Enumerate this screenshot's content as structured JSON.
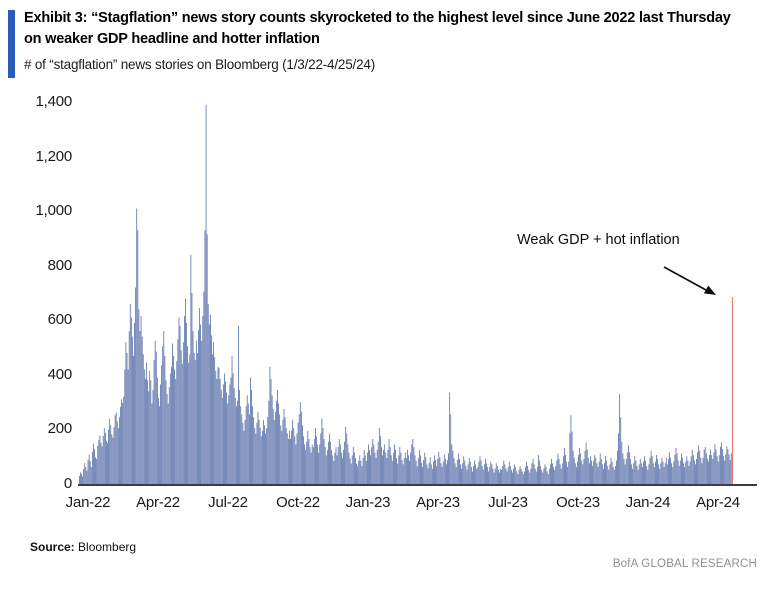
{
  "header": {
    "exhibit_title": "Exhibit 3: “Stagflation” news story counts skyrocketed to the highest level since June 2022 last Thursday on weaker GDP headline and hotter inflation",
    "subtitle": "# of “stagflation” news stories on Bloomberg (1/3/22-4/25/24)",
    "accent_color": "#2b5abd"
  },
  "annotation": {
    "text": "Weak GDP + hot inflation"
  },
  "footer": {
    "source_label": "Source:",
    "source_value": "Bloomberg",
    "brand": "BofA GLOBAL RESEARCH"
  },
  "chart_data": {
    "type": "bar",
    "title": "# of “stagflation” news stories on Bloomberg (1/3/22-4/25/24)",
    "xlabel": "",
    "ylabel": "",
    "ylim": [
      0,
      1400
    ],
    "grid": false,
    "legend": "none",
    "y_ticks": [
      0,
      200,
      400,
      600,
      800,
      1000,
      1200,
      1400
    ],
    "y_tick_labels": [
      "0",
      "200",
      "400",
      "600",
      "800",
      "1,000",
      "1,200",
      "1,400"
    ],
    "x_tick_labels": [
      "Jan-22",
      "Apr-22",
      "Jul-22",
      "Oct-22",
      "Jan-23",
      "Apr-23",
      "Jul-23",
      "Oct-23",
      "Jan-24",
      "Apr-24"
    ],
    "frequency": "daily (weekdays)",
    "date_range": "1/3/22 - 4/25/24",
    "bar_color": "#46609f",
    "highlight_color": "#e07a6d",
    "highlight_index": 603,
    "highlight_value": 685,
    "highlight_label": "Weak GDP + hot inflation",
    "notable_points": {
      "mar_2022_peak": 1010,
      "jun_2022_peak_max": 1390,
      "jul_2022_gdp_spike": 580,
      "apr_2023_gdp_spike": 335,
      "oct_2023_spike": 252,
      "dec_2023_spike": 330,
      "apr_25_2024_red_bar": 685
    },
    "values": [
      30,
      42,
      36,
      28,
      55,
      78,
      62,
      48,
      88,
      108,
      84,
      62,
      118,
      148,
      128,
      98,
      92,
      140,
      162,
      178,
      150,
      138,
      176,
      205,
      188,
      158,
      150,
      198,
      238,
      215,
      182,
      170,
      208,
      252,
      262,
      228,
      205,
      245,
      282,
      310,
      298,
      320,
      420,
      520,
      480,
      420,
      560,
      660,
      610,
      540,
      470,
      590,
      720,
      1010,
      930,
      640,
      560,
      615,
      540,
      475,
      420,
      385,
      445,
      380,
      340,
      415,
      380,
      295,
      345,
      455,
      525,
      485,
      390,
      315,
      285,
      365,
      435,
      505,
      560,
      470,
      380,
      330,
      295,
      355,
      405,
      430,
      515,
      470,
      420,
      385,
      450,
      530,
      610,
      580,
      490,
      440,
      520,
      615,
      680,
      590,
      505,
      445,
      475,
      840,
      700,
      560,
      480,
      455,
      525,
      480,
      565,
      645,
      585,
      525,
      615,
      705,
      930,
      1390,
      915,
      660,
      585,
      620,
      545,
      475,
      520,
      465,
      415,
      385,
      430,
      425,
      385,
      345,
      315,
      365,
      405,
      375,
      335,
      295,
      325,
      365,
      390,
      470,
      405,
      350,
      315,
      285,
      305,
      580,
      345,
      285,
      255,
      225,
      195,
      235,
      285,
      325,
      295,
      255,
      390,
      345,
      285,
      245,
      205,
      185,
      225,
      265,
      235,
      205,
      175,
      195,
      235,
      215,
      185,
      205,
      245,
      305,
      430,
      385,
      325,
      275,
      235,
      265,
      305,
      345,
      295,
      255,
      215,
      195,
      235,
      275,
      245,
      205,
      185,
      165,
      195,
      165,
      195,
      235,
      205,
      175,
      145,
      185,
      225,
      255,
      300,
      265,
      215,
      175,
      145,
      125,
      155,
      195,
      165,
      135,
      115,
      145,
      135,
      165,
      205,
      175,
      145,
      115,
      145,
      185,
      240,
      205,
      165,
      135,
      105,
      125,
      155,
      185,
      155,
      125,
      105,
      85,
      115,
      135,
      105,
      135,
      165,
      145,
      115,
      95,
      125,
      155,
      210,
      185,
      145,
      115,
      95,
      75,
      105,
      135,
      115,
      95,
      75,
      65,
      85,
      105,
      85,
      65,
      95,
      125,
      105,
      85,
      115,
      145,
      125,
      105,
      135,
      165,
      145,
      115,
      95,
      125,
      155,
      205,
      175,
      135,
      105,
      125,
      145,
      115,
      95,
      125,
      165,
      135,
      105,
      85,
      115,
      145,
      125,
      95,
      75,
      105,
      135,
      115,
      88,
      72,
      95,
      115,
      95,
      125,
      105,
      85,
      115,
      145,
      165,
      135,
      105,
      85,
      65,
      95,
      125,
      105,
      78,
      62,
      88,
      115,
      98,
      72,
      58,
      78,
      98,
      72,
      56,
      82,
      105,
      88,
      66,
      92,
      118,
      98,
      76,
      62,
      82,
      108,
      92,
      72,
      88,
      112,
      335,
      255,
      145,
      122,
      96,
      76,
      62,
      88,
      112,
      92,
      72,
      56,
      76,
      102,
      86,
      66,
      52,
      72,
      96,
      82,
      62,
      46,
      66,
      86,
      72,
      56,
      62,
      82,
      102,
      86,
      66,
      52,
      72,
      92,
      76,
      62,
      46,
      62,
      82,
      72,
      56,
      42,
      56,
      76,
      66,
      52,
      42,
      56,
      52,
      66,
      86,
      72,
      56,
      46,
      62,
      82,
      66,
      52,
      42,
      56,
      72,
      62,
      46,
      36,
      52,
      66,
      56,
      46,
      36,
      46,
      62,
      82,
      66,
      52,
      42,
      56,
      76,
      92,
      72,
      56,
      46,
      62,
      106,
      86,
      66,
      52,
      42,
      56,
      72,
      62,
      46,
      36,
      56,
      72,
      92,
      76,
      62,
      52,
      66,
      86,
      112,
      92,
      72,
      56,
      76,
      102,
      132,
      106,
      82,
      62,
      82,
      186,
      252,
      192,
      122,
      96,
      76,
      62,
      82,
      106,
      132,
      112,
      86,
      72,
      92,
      122,
      152,
      126,
      96,
      76,
      102,
      86,
      66,
      86,
      106,
      96,
      76,
      62,
      82,
      112,
      92,
      72,
      56,
      76,
      102,
      86,
      66,
      52,
      72,
      96,
      82,
      62,
      52,
      66,
      86,
      122,
      186,
      330,
      245,
      155,
      112,
      92,
      72,
      92,
      116,
      142,
      116,
      92,
      72,
      56,
      76,
      102,
      86,
      66,
      52,
      72,
      92,
      76,
      62,
      82,
      102,
      86,
      66,
      52,
      72,
      96,
      122,
      102,
      76,
      62,
      82,
      106,
      92,
      72,
      56,
      76,
      96,
      82,
      62,
      76,
      96,
      72,
      92,
      116,
      96,
      76,
      62,
      82,
      106,
      132,
      112,
      86,
      66,
      86,
      112,
      96,
      76,
      62,
      82,
      102,
      86,
      66,
      82,
      102,
      126,
      106,
      86,
      72,
      92,
      116,
      142,
      122,
      96,
      76,
      96,
      126,
      136,
      112,
      92,
      82,
      106,
      126,
      106,
      92,
      116,
      146,
      126,
      102,
      82,
      106,
      136,
      152,
      128,
      102,
      86,
      108,
      138,
      128,
      108,
      88,
      112,
      685
    ]
  }
}
